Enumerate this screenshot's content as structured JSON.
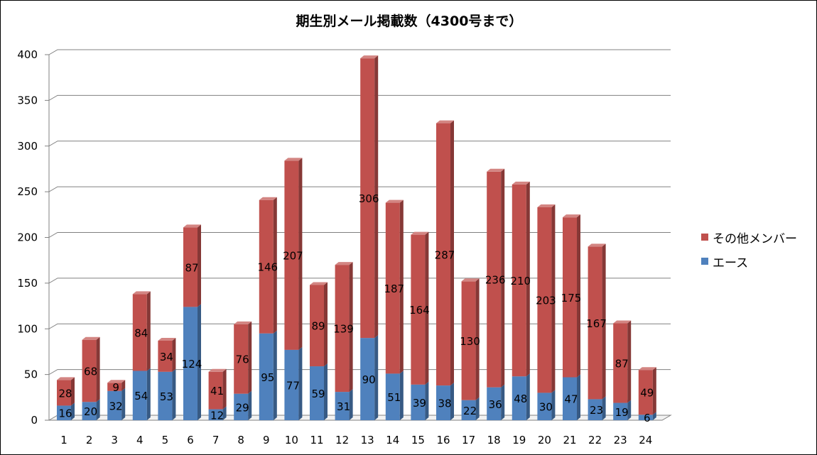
{
  "chart_data": {
    "type": "bar",
    "stacked": true,
    "three_d": true,
    "title": "期生別メール掲載数（4300号まで）",
    "categories": [
      "1",
      "2",
      "3",
      "4",
      "5",
      "6",
      "7",
      "8",
      "9",
      "10",
      "11",
      "12",
      "13",
      "14",
      "15",
      "16",
      "17",
      "18",
      "19",
      "20",
      "21",
      "22",
      "23",
      "24"
    ],
    "series": [
      {
        "name": "エース",
        "color": "#4f81bd",
        "values": [
          16,
          20,
          32,
          54,
          53,
          124,
          12,
          29,
          95,
          77,
          59,
          31,
          90,
          51,
          39,
          38,
          22,
          36,
          48,
          30,
          47,
          23,
          19,
          6
        ]
      },
      {
        "name": "その他メンバー",
        "color": "#c0504d",
        "values": [
          28,
          68,
          9,
          84,
          34,
          87,
          41,
          76,
          146,
          207,
          89,
          139,
          306,
          187,
          164,
          287,
          130,
          236,
          210,
          203,
          175,
          167,
          87,
          49
        ]
      }
    ],
    "ylim": [
      0,
      400
    ],
    "yticks": [
      0,
      50,
      100,
      150,
      200,
      250,
      300,
      350,
      400
    ],
    "grid": true,
    "legend_position": "right",
    "data_labels": true
  }
}
